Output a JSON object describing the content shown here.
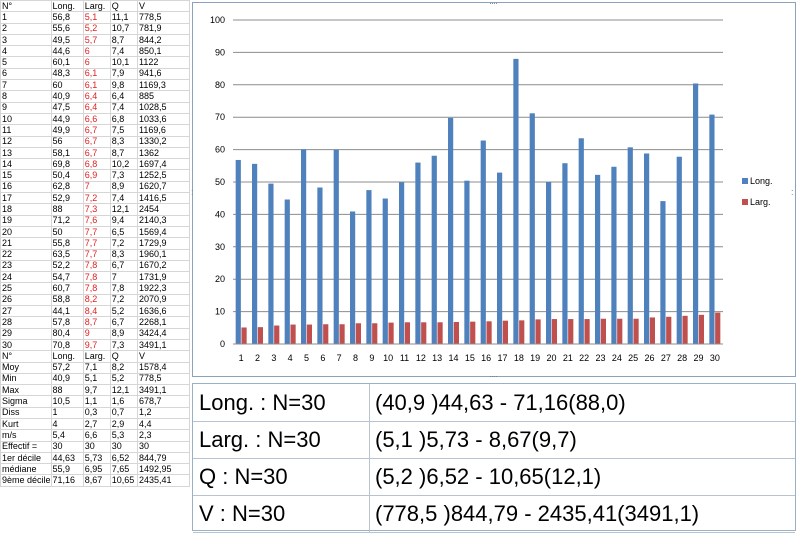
{
  "sheet": {
    "headers": [
      "N°",
      "Long.",
      "Larg.",
      "Q",
      "V"
    ],
    "rows": [
      [
        "1",
        "56,8",
        "5,1",
        "11,1",
        "778,5"
      ],
      [
        "2",
        "55,6",
        "5,2",
        "10,7",
        "781,9"
      ],
      [
        "3",
        "49,5",
        "5,7",
        "8,7",
        "844,2"
      ],
      [
        "4",
        "44,6",
        "6",
        "7,4",
        "850,1"
      ],
      [
        "5",
        "60,1",
        "6",
        "10,1",
        "1122"
      ],
      [
        "6",
        "48,3",
        "6,1",
        "7,9",
        "941,6"
      ],
      [
        "7",
        "60",
        "6,1",
        "9,8",
        "1169,3"
      ],
      [
        "8",
        "40,9",
        "6,4",
        "6,4",
        "885"
      ],
      [
        "9",
        "47,5",
        "6,4",
        "7,4",
        "1028,5"
      ],
      [
        "10",
        "44,9",
        "6,6",
        "6,8",
        "1033,6"
      ],
      [
        "11",
        "49,9",
        "6,7",
        "7,5",
        "1169,6"
      ],
      [
        "12",
        "56",
        "6,7",
        "8,3",
        "1330,2"
      ],
      [
        "13",
        "58,1",
        "6,7",
        "8,7",
        "1362"
      ],
      [
        "14",
        "69,8",
        "6,8",
        "10,2",
        "1697,4"
      ],
      [
        "15",
        "50,4",
        "6,9",
        "7,3",
        "1252,5"
      ],
      [
        "16",
        "62,8",
        "7",
        "8,9",
        "1620,7"
      ],
      [
        "17",
        "52,9",
        "7,2",
        "7,4",
        "1416,5"
      ],
      [
        "18",
        "88",
        "7,3",
        "12,1",
        "2454"
      ],
      [
        "19",
        "71,2",
        "7,6",
        "9,4",
        "2140,3"
      ],
      [
        "20",
        "50",
        "7,7",
        "6,5",
        "1569,4"
      ],
      [
        "21",
        "55,8",
        "7,7",
        "7,2",
        "1729,9"
      ],
      [
        "22",
        "63,5",
        "7,7",
        "8,3",
        "1960,1"
      ],
      [
        "23",
        "52,2",
        "7,8",
        "6,7",
        "1670,2"
      ],
      [
        "24",
        "54,7",
        "7,8",
        "7",
        "1731,9"
      ],
      [
        "25",
        "60,7",
        "7,8",
        "7,8",
        "1922,3"
      ],
      [
        "26",
        "58,8",
        "8,2",
        "7,2",
        "2070,9"
      ],
      [
        "27",
        "44,1",
        "8,4",
        "5,2",
        "1636,6"
      ],
      [
        "28",
        "57,8",
        "8,7",
        "6,7",
        "2268,1"
      ],
      [
        "29",
        "80,4",
        "9",
        "8,9",
        "3424,4"
      ],
      [
        "30",
        "70,8",
        "9,7",
        "7,3",
        "3491,1"
      ]
    ],
    "summary_headers": [
      "N°",
      "Long.",
      "Larg.",
      "Q",
      "V"
    ],
    "summary_rows": [
      [
        "Moy",
        "57,2",
        "7,1",
        "8,2",
        "1578,4"
      ],
      [
        "Min",
        "40,9",
        "5,1",
        "5,2",
        "778,5"
      ],
      [
        "Max",
        "88",
        "9,7",
        "12,1",
        "3491,1"
      ],
      [
        "Sigma",
        "10,5",
        "1,1",
        "1,6",
        "678,7"
      ],
      [
        "Diss",
        "1",
        "0,3",
        "0,7",
        "1,2"
      ],
      [
        "Kurt",
        "4",
        "2,7",
        "2,9",
        "4,4"
      ],
      [
        "m/s",
        "5,4",
        "6,6",
        "5,3",
        "2,3"
      ],
      [
        "Effectif =",
        "30",
        "30",
        "30",
        "30"
      ],
      [
        "1er décile",
        "44,63",
        "5,73",
        "6,52",
        "844,79"
      ],
      [
        "médiane",
        "55,9",
        "6,95",
        "7,65",
        "1492,95"
      ],
      [
        "9ème décile",
        "71,16",
        "8,67",
        "10,65",
        "2435,41"
      ]
    ]
  },
  "chart_data": {
    "type": "bar",
    "categories": [
      "1",
      "2",
      "3",
      "4",
      "5",
      "6",
      "7",
      "8",
      "9",
      "10",
      "11",
      "12",
      "13",
      "14",
      "15",
      "16",
      "17",
      "18",
      "19",
      "20",
      "21",
      "22",
      "23",
      "24",
      "25",
      "26",
      "27",
      "28",
      "29",
      "30"
    ],
    "series": [
      {
        "name": "Long.",
        "color": "#4f81bd",
        "values": [
          56.8,
          55.6,
          49.5,
          44.6,
          60.1,
          48.3,
          60,
          40.9,
          47.5,
          44.9,
          49.9,
          56,
          58.1,
          69.8,
          50.4,
          62.8,
          52.9,
          88,
          71.2,
          50,
          55.8,
          63.5,
          52.2,
          54.7,
          60.7,
          58.8,
          44.1,
          57.8,
          80.4,
          70.8
        ]
      },
      {
        "name": "Larg.",
        "color": "#c0504d",
        "values": [
          5.1,
          5.2,
          5.7,
          6,
          6,
          6.1,
          6.1,
          6.4,
          6.4,
          6.6,
          6.7,
          6.7,
          6.7,
          6.8,
          6.9,
          7,
          7.2,
          7.3,
          7.6,
          7.7,
          7.7,
          7.7,
          7.8,
          7.8,
          7.8,
          8.2,
          8.4,
          8.7,
          9,
          9.7
        ]
      }
    ],
    "ylim": [
      0,
      100
    ],
    "yticks": [
      "0",
      "10",
      "20",
      "30",
      "40",
      "50",
      "60",
      "70",
      "80",
      "90",
      "100"
    ],
    "grid": true,
    "legend_position": "right"
  },
  "stats": [
    {
      "label": "Long. : N=30",
      "value": "(40,9 )44,63 - 71,16(88,0)"
    },
    {
      "label": "Larg. : N=30",
      "value": "(5,1 )5,73 - 8,67(9,7)"
    },
    {
      "label": "Q : N=30",
      "value": "(5,2 )6,52 - 10,65(12,1)"
    },
    {
      "label": "V : N=30",
      "value": "(778,5 )844,79 - 2435,41(3491,1)"
    }
  ]
}
